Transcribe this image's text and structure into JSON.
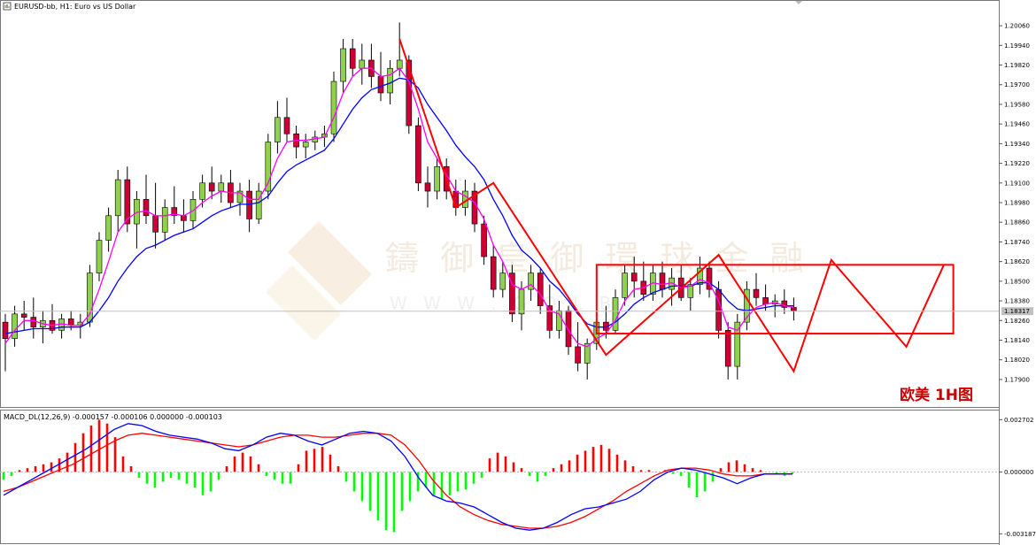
{
  "header": {
    "title": "EURUSD-bb, H1:  Euro vs US Dollar",
    "icon": "chart-window-icon"
  },
  "colors": {
    "bull_body": "#8fd14f",
    "bear_body": "#cc0033",
    "candle_line": "#000000",
    "ma_fast": "#ff00ff",
    "ma_slow": "#0000ff",
    "pattern": "#ff0000",
    "macd_pos": "#ff0000",
    "macd_neg": "#00ff00",
    "signal_blue": "#0000ff",
    "signal_red": "#ff0000",
    "price_label_bg": "#c0c0c0"
  },
  "price_axis": {
    "ticks": [
      "1.20060",
      "1.19940",
      "1.19820",
      "1.19700",
      "1.19580",
      "1.19460",
      "1.19340",
      "1.19220",
      "1.19100",
      "1.18980",
      "1.18860",
      "1.18740",
      "1.18620",
      "1.18500",
      "1.18380",
      "1.18260",
      "1.18140",
      "1.18020",
      "1.17900"
    ],
    "current_price": "1.18317"
  },
  "macd": {
    "label": "MACD_DL(12,26,9)  -0.000157  -0.000106  0.000000  -0.000103",
    "ticks": [
      "0.002702",
      "0.000000",
      "-0.003187"
    ]
  },
  "annotation": {
    "label": "欧美 1H图"
  },
  "watermark": {
    "brand": "鑄 御 皇 御 環 球 金 融",
    "url": "W W W . G O L B . . ."
  },
  "chart_data": {
    "type": "candlestick",
    "title": "EURUSD-bb, H1:  Euro vs US Dollar",
    "ylim": [
      1.1784,
      1.2012
    ],
    "candles": [
      [
        1.1825,
        1.183,
        1.1795,
        1.1815
      ],
      [
        1.1815,
        1.1835,
        1.181,
        1.183
      ],
      [
        1.183,
        1.1838,
        1.182,
        1.1828
      ],
      [
        1.1828,
        1.184,
        1.1815,
        1.1822
      ],
      [
        1.1822,
        1.1832,
        1.1812,
        1.1826
      ],
      [
        1.1826,
        1.1836,
        1.1818,
        1.182
      ],
      [
        1.182,
        1.183,
        1.1815,
        1.1827
      ],
      [
        1.1827,
        1.1832,
        1.182,
        1.1823
      ],
      [
        1.1823,
        1.183,
        1.1815,
        1.1825
      ],
      [
        1.1825,
        1.186,
        1.1822,
        1.1855
      ],
      [
        1.1855,
        1.188,
        1.185,
        1.1875
      ],
      [
        1.1875,
        1.1895,
        1.1868,
        1.189
      ],
      [
        1.189,
        1.1918,
        1.188,
        1.1912
      ],
      [
        1.1912,
        1.192,
        1.188,
        1.1885
      ],
      [
        1.1885,
        1.1905,
        1.187,
        1.19
      ],
      [
        1.19,
        1.1915,
        1.1885,
        1.189
      ],
      [
        1.189,
        1.191,
        1.187,
        1.188
      ],
      [
        1.188,
        1.19,
        1.1875,
        1.1895
      ],
      [
        1.1895,
        1.1908,
        1.1885,
        1.189
      ],
      [
        1.189,
        1.19,
        1.188,
        1.1887
      ],
      [
        1.1887,
        1.1905,
        1.1882,
        1.19
      ],
      [
        1.19,
        1.1915,
        1.1895,
        1.191
      ],
      [
        1.191,
        1.192,
        1.19,
        1.1905
      ],
      [
        1.1905,
        1.1915,
        1.1898,
        1.191
      ],
      [
        1.191,
        1.1918,
        1.1895,
        1.1898
      ],
      [
        1.1898,
        1.191,
        1.189,
        1.1905
      ],
      [
        1.1905,
        1.1912,
        1.188,
        1.1888
      ],
      [
        1.1888,
        1.191,
        1.1885,
        1.1905
      ],
      [
        1.1905,
        1.194,
        1.19,
        1.1935
      ],
      [
        1.1935,
        1.196,
        1.1928,
        1.195
      ],
      [
        1.195,
        1.1962,
        1.1935,
        1.194
      ],
      [
        1.194,
        1.1945,
        1.1925,
        1.1932
      ],
      [
        1.1932,
        1.194,
        1.1925,
        1.1935
      ],
      [
        1.1935,
        1.1942,
        1.193,
        1.1938
      ],
      [
        1.1938,
        1.1945,
        1.1932,
        1.194
      ],
      [
        1.194,
        1.1978,
        1.1935,
        1.1972
      ],
      [
        1.1972,
        1.1998,
        1.1965,
        1.1992
      ],
      [
        1.1992,
        1.1998,
        1.1975,
        1.198
      ],
      [
        1.198,
        1.1995,
        1.197,
        1.1985
      ],
      [
        1.1985,
        1.1995,
        1.1968,
        1.1975
      ],
      [
        1.1975,
        1.199,
        1.196,
        1.1965
      ],
      [
        1.1965,
        1.1985,
        1.1958,
        1.198
      ],
      [
        1.198,
        1.2008,
        1.1975,
        1.1985
      ],
      [
        1.1985,
        1.1988,
        1.194,
        1.1945
      ],
      [
        1.1945,
        1.195,
        1.1905,
        1.191
      ],
      [
        1.191,
        1.192,
        1.1895,
        1.1905
      ],
      [
        1.1905,
        1.1925,
        1.19,
        1.192
      ],
      [
        1.192,
        1.1925,
        1.19,
        1.1905
      ],
      [
        1.1905,
        1.1912,
        1.189,
        1.1895
      ],
      [
        1.1895,
        1.1912,
        1.189,
        1.1905
      ],
      [
        1.1905,
        1.191,
        1.188,
        1.1885
      ],
      [
        1.1885,
        1.189,
        1.186,
        1.1865
      ],
      [
        1.1865,
        1.1872,
        1.184,
        1.1845
      ],
      [
        1.1845,
        1.1862,
        1.184,
        1.1855
      ],
      [
        1.1855,
        1.186,
        1.1825,
        1.183
      ],
      [
        1.183,
        1.185,
        1.182,
        1.1845
      ],
      [
        1.1845,
        1.186,
        1.1838,
        1.1855
      ],
      [
        1.1855,
        1.1858,
        1.183,
        1.1835
      ],
      [
        1.1835,
        1.1848,
        1.1815,
        1.182
      ],
      [
        1.182,
        1.1838,
        1.1815,
        1.1832
      ],
      [
        1.1832,
        1.1835,
        1.1805,
        1.181
      ],
      [
        1.181,
        1.1825,
        1.1795,
        1.18
      ],
      [
        1.18,
        1.1815,
        1.179,
        1.1812
      ],
      [
        1.1812,
        1.183,
        1.1808,
        1.1825
      ],
      [
        1.1825,
        1.1835,
        1.1815,
        1.182
      ],
      [
        1.182,
        1.1845,
        1.1818,
        1.184
      ],
      [
        1.184,
        1.186,
        1.1835,
        1.1855
      ],
      [
        1.1855,
        1.1865,
        1.184,
        1.185
      ],
      [
        1.185,
        1.1862,
        1.1838,
        1.1842
      ],
      [
        1.1842,
        1.186,
        1.1838,
        1.1855
      ],
      [
        1.1855,
        1.1862,
        1.184,
        1.1845
      ],
      [
        1.1845,
        1.1858,
        1.1835,
        1.1852
      ],
      [
        1.1852,
        1.186,
        1.1838,
        1.184
      ],
      [
        1.184,
        1.1852,
        1.1832,
        1.1848
      ],
      [
        1.1848,
        1.1865,
        1.1842,
        1.1858
      ],
      [
        1.1858,
        1.1862,
        1.184,
        1.1845
      ],
      [
        1.1845,
        1.185,
        1.1815,
        1.182
      ],
      [
        1.182,
        1.1825,
        1.179,
        1.1798
      ],
      [
        1.1798,
        1.183,
        1.179,
        1.1825
      ],
      [
        1.1825,
        1.185,
        1.182,
        1.1845
      ],
      [
        1.1845,
        1.1855,
        1.1835,
        1.184
      ],
      [
        1.184,
        1.1848,
        1.1832,
        1.1836
      ],
      [
        1.1836,
        1.1842,
        1.1828,
        1.1838
      ],
      [
        1.1838,
        1.1845,
        1.183,
        1.1834
      ],
      [
        1.1834,
        1.184,
        1.1826,
        1.1832
      ]
    ],
    "ma_fast": [
      1.1812,
      1.182,
      1.1826,
      1.1826,
      1.1824,
      1.1823,
      1.1824,
      1.1823,
      1.1823,
      1.183,
      1.1845,
      1.1862,
      1.188,
      1.1888,
      1.1892,
      1.1893,
      1.189,
      1.189,
      1.1891,
      1.189,
      1.1893,
      1.1898,
      1.1902,
      1.1905,
      1.1904,
      1.1904,
      1.19,
      1.19,
      1.191,
      1.1925,
      1.1935,
      1.1936,
      1.1936,
      1.1937,
      1.1938,
      1.195,
      1.1965,
      1.1975,
      1.198,
      1.198,
      1.1975,
      1.1976,
      1.198,
      1.1972,
      1.1955,
      1.1935,
      1.1925,
      1.1915,
      1.1905,
      1.1902,
      1.1898,
      1.1888,
      1.1872,
      1.1862,
      1.1848,
      1.1845,
      1.1848,
      1.1842,
      1.1832,
      1.183,
      1.182,
      1.1812,
      1.181,
      1.1815,
      1.1818,
      1.1826,
      1.1838,
      1.1845,
      1.1846,
      1.1849,
      1.1848,
      1.1849,
      1.1846,
      1.1847,
      1.1851,
      1.1849,
      1.1838,
      1.1822,
      1.182,
      1.1828,
      1.1834,
      1.1836,
      1.1837,
      1.1835,
      1.1834
    ],
    "ma_slow": [
      1.1818,
      1.1819,
      1.182,
      1.1821,
      1.1821,
      1.1821,
      1.1822,
      1.1822,
      1.1822,
      1.1825,
      1.1832,
      1.184,
      1.185,
      1.1858,
      1.1865,
      1.187,
      1.1872,
      1.1875,
      1.1878,
      1.188,
      1.1882,
      1.1886,
      1.189,
      1.1893,
      1.1895,
      1.1897,
      1.1897,
      1.1898,
      1.1902,
      1.191,
      1.1917,
      1.1921,
      1.1924,
      1.1927,
      1.193,
      1.1937,
      1.1946,
      1.1955,
      1.1962,
      1.1967,
      1.1969,
      1.1971,
      1.1974,
      1.1973,
      1.1968,
      1.1958,
      1.195,
      1.1942,
      1.1933,
      1.1926,
      1.192,
      1.1912,
      1.19,
      1.189,
      1.1878,
      1.1869,
      1.1864,
      1.1858,
      1.185,
      1.1845,
      1.1838,
      1.183,
      1.1824,
      1.1822,
      1.1822,
      1.1825,
      1.183,
      1.1836,
      1.184,
      1.1843,
      1.1845,
      1.1847,
      1.1847,
      1.1847,
      1.1849,
      1.1849,
      1.1845,
      1.1838,
      1.1833,
      1.1832,
      1.1833,
      1.1834,
      1.1835,
      1.1835,
      1.1835
    ],
    "pattern_line": [
      [
        42,
        1.1998
      ],
      [
        48,
        1.1895
      ],
      [
        52,
        1.191
      ],
      [
        64,
        1.1805
      ],
      [
        76,
        1.1866
      ],
      [
        84,
        1.1795
      ],
      [
        88,
        1.1863
      ],
      [
        96,
        1.181
      ],
      [
        100,
        1.186
      ]
    ],
    "range_box": {
      "x_from": 63,
      "x_to": 101,
      "y_top": 1.186,
      "y_bottom": 1.1818
    },
    "macd_hist": [
      -0.0004,
      -0.0002,
      0.0001,
      0.0002,
      0.0003,
      0.0004,
      0.0005,
      0.0007,
      0.001,
      0.0015,
      0.002,
      0.0024,
      0.0027,
      0.0025,
      0.0018,
      0.0008,
      0.0003,
      -0.0003,
      -0.0006,
      -0.0008,
      -0.0005,
      -0.0003,
      -0.0004,
      -0.0006,
      -0.0008,
      -0.0012,
      -0.001,
      -0.0004,
      0.0003,
      0.0008,
      0.001,
      0.0008,
      0.0004,
      -0.0002,
      -0.0004,
      -0.0006,
      -0.0006,
      0.0004,
      0.0011,
      0.0012,
      0.0013,
      0.0009,
      0.0003,
      -0.0005,
      -0.001,
      -0.0015,
      -0.002,
      -0.0025,
      -0.003,
      -0.0031,
      -0.002,
      -0.0015,
      -0.001,
      -0.0008,
      -0.0012,
      -0.0014,
      -0.0012,
      -0.001,
      -0.0009,
      -0.0006,
      -0.0003,
      0.0007,
      0.001,
      0.0008,
      0.0005,
      0.0002,
      -0.0002,
      -0.0005,
      -0.0002,
      0.0002,
      0.0004,
      0.0006,
      0.0009,
      0.0011,
      0.0013,
      0.0014,
      0.0012,
      0.0009,
      0.0006,
      0.0003,
      0.0001,
      0.0001,
      0.0,
      0.0001,
      -0.0001,
      -0.0002,
      -0.0008,
      -0.0013,
      -0.001,
      -0.0005,
      0.0002,
      0.0005,
      0.0006,
      0.0004,
      0.0002,
      0.0001,
      0.0,
      -0.0001,
      -0.0002,
      -0.0001
    ],
    "macd_line_blue": [
      -0.0012,
      -0.0008,
      -0.0004,
      0.0,
      0.0004,
      0.0008,
      0.0012,
      0.0017,
      0.0022,
      0.0025,
      0.0024,
      0.0021,
      0.0019,
      0.0018,
      0.0017,
      0.0015,
      0.0012,
      0.0011,
      0.0014,
      0.0018,
      0.002,
      0.0019,
      0.0016,
      0.0014,
      0.0017,
      0.002,
      0.0021,
      0.002,
      0.0016,
      0.0008,
      -0.0003,
      -0.0012,
      -0.0015,
      -0.0016,
      -0.0018,
      -0.0022,
      -0.0026,
      -0.0029,
      -0.003,
      -0.0029,
      -0.0026,
      -0.0022,
      -0.0019,
      -0.0018,
      -0.0016,
      -0.0014,
      -0.001,
      -0.0004,
      0.0,
      0.0002,
      0.0001,
      -0.0001,
      -0.0003,
      -0.0006,
      -0.0003,
      -0.0001,
      -0.0001,
      -0.0001
    ],
    "macd_line_red": [
      -0.001,
      -0.0008,
      -0.0005,
      -0.0002,
      0.0001,
      0.0004,
      0.0008,
      0.0012,
      0.0016,
      0.0019,
      0.002,
      0.0019,
      0.0018,
      0.0017,
      0.0016,
      0.0015,
      0.0014,
      0.0013,
      0.0014,
      0.0016,
      0.0018,
      0.0019,
      0.0019,
      0.0018,
      0.0018,
      0.0019,
      0.002,
      0.002,
      0.0019,
      0.0014,
      0.0006,
      -0.0004,
      -0.0012,
      -0.0018,
      -0.0022,
      -0.0025,
      -0.0027,
      -0.0028,
      -0.0029,
      -0.0029,
      -0.0028,
      -0.0026,
      -0.0023,
      -0.0019,
      -0.0015,
      -0.001,
      -0.0006,
      -0.0002,
      0.0001,
      0.0002,
      0.0002,
      0.0001,
      -0.0001,
      -0.0002,
      -0.0002,
      -0.0001,
      -0.0001,
      -0.0001
    ],
    "macd_ylim": [
      -0.0034,
      0.0029
    ]
  }
}
